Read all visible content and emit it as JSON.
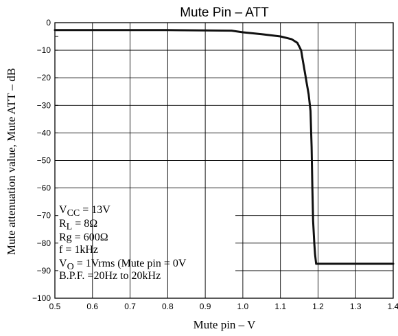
{
  "chart_data": {
    "type": "line",
    "title": "Mute Pin – ATT",
    "xlabel": "Mute pin – V",
    "ylabel": "Mute attenuation value, Mute ATT – dB",
    "xlim": [
      0.5,
      1.4
    ],
    "ylim": [
      -100,
      0
    ],
    "grid": true,
    "x_ticks": [
      "0.5",
      "0.6",
      "0.7",
      "0.8",
      "0.9",
      "1.0",
      "1.1",
      "1.2",
      "1.3",
      "1.4"
    ],
    "y_ticks": [
      "0",
      "",
      "−10",
      "−20",
      "−30",
      "−40",
      "−50",
      "−60",
      "−70",
      "−80",
      "−90",
      "−100"
    ],
    "series": [
      {
        "x": [
          0.5,
          0.8,
          0.97,
          1.0,
          1.05,
          1.1,
          1.13,
          1.145,
          1.155,
          1.16,
          1.165,
          1.17,
          1.175,
          1.18,
          1.183,
          1.185,
          1.187,
          1.19,
          1.192,
          1.195,
          1.2,
          1.25,
          1.3,
          1.35,
          1.4
        ],
        "y": [
          -2.7,
          -2.7,
          -2.9,
          -3.5,
          -4.2,
          -5.0,
          -6.0,
          -7.3,
          -10,
          -14,
          -18,
          -22,
          -26,
          -32,
          -45,
          -60,
          -72,
          -80,
          -84,
          -87.5,
          -87.5,
          -87.5,
          -87.5,
          -87.5,
          -87.5
        ]
      }
    ],
    "annotations": [
      {
        "main": "V",
        "sub": "CC",
        "rest": " = 13V"
      },
      {
        "main": "R",
        "sub": "L",
        "rest": " = 8Ω"
      },
      {
        "main": "Rg = 600Ω",
        "sub": "",
        "rest": ""
      },
      {
        "main": "f = 1kHz",
        "sub": "",
        "rest": ""
      },
      {
        "main": "V",
        "sub": "O",
        "rest": " = 1Vrms (Mute pin = 0V"
      },
      {
        "main": "B.P.F. =20Hz to 20kHz",
        "sub": "",
        "rest": ""
      }
    ]
  }
}
